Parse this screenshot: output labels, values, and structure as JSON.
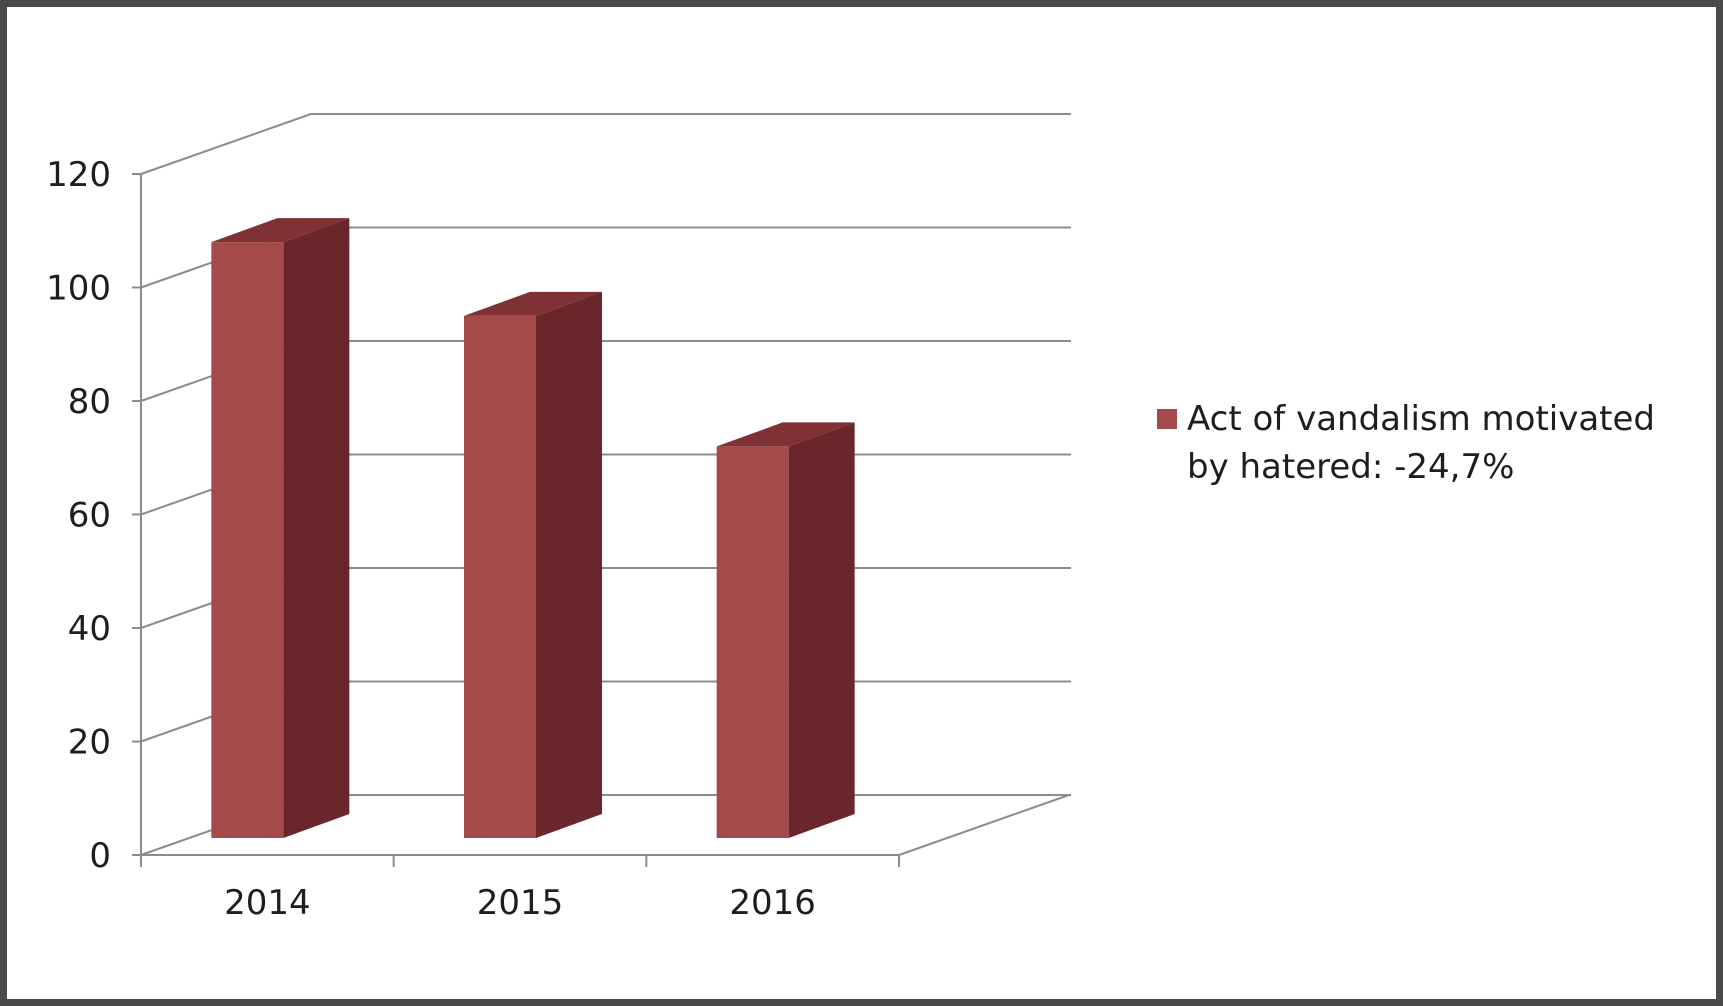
{
  "chart_data": {
    "type": "bar",
    "three_d": true,
    "categories": [
      "2014",
      "2015",
      "2016"
    ],
    "series": [
      {
        "name": "Act of vandalism motivated by hatered: -24,7%",
        "values": [
          105,
          92,
          69
        ]
      }
    ],
    "y_ticks": [
      "0",
      "20",
      "40",
      "60",
      "80",
      "100",
      "120"
    ],
    "ylim": [
      0,
      120
    ],
    "grid": true,
    "legend_position": "right",
    "colors": {
      "bar_front": "#a54a4a",
      "bar_side": "#6a262b",
      "bar_top": "#7f3134",
      "grid": "#8c8c8c",
      "axis": "#8c8c8c"
    }
  }
}
